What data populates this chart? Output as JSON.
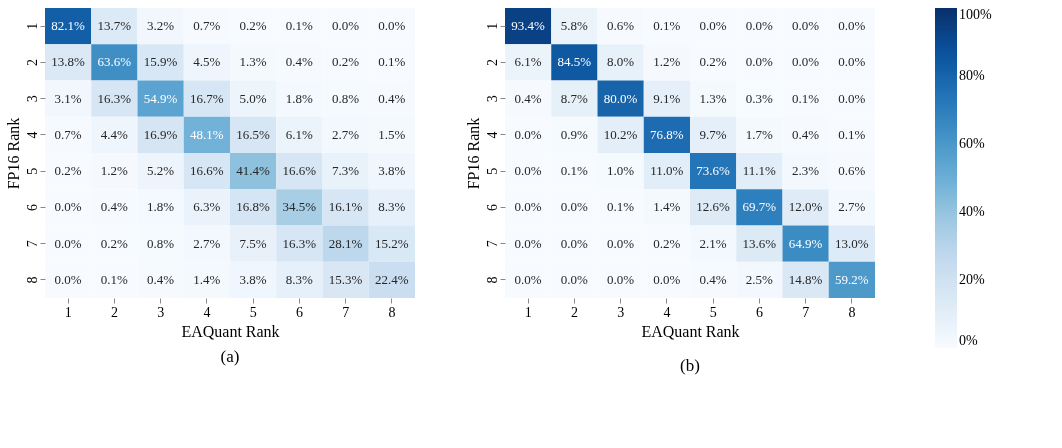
{
  "chart_data": [
    {
      "type": "heatmap",
      "title": "(a)",
      "xlabel": "EAQuant Rank",
      "ylabel": "FP16 Rank",
      "categories": [
        "1",
        "2",
        "3",
        "4",
        "5",
        "6",
        "7",
        "8"
      ],
      "y_categories": [
        "1",
        "2",
        "3",
        "4",
        "5",
        "6",
        "7",
        "8"
      ],
      "cells": [
        [
          82.1,
          13.7,
          3.2,
          0.7,
          0.2,
          0.1,
          0.0,
          0.0
        ],
        [
          13.8,
          63.6,
          15.9,
          4.5,
          1.3,
          0.4,
          0.2,
          0.1
        ],
        [
          3.1,
          16.3,
          54.9,
          16.7,
          5.0,
          1.8,
          0.8,
          0.4
        ],
        [
          0.7,
          4.4,
          16.9,
          48.1,
          16.5,
          6.1,
          2.7,
          1.5
        ],
        [
          0.2,
          1.2,
          5.2,
          16.6,
          41.4,
          16.6,
          7.3,
          3.8
        ],
        [
          0.0,
          0.4,
          1.8,
          6.3,
          16.8,
          34.5,
          16.1,
          8.3
        ],
        [
          0.0,
          0.2,
          0.8,
          2.7,
          7.5,
          16.3,
          28.1,
          15.2
        ],
        [
          0.0,
          0.1,
          0.4,
          1.4,
          3.8,
          8.3,
          15.3,
          22.4
        ]
      ],
      "cell_labels": [
        [
          "82.1%",
          "13.7%",
          "3.2%",
          "0.7%",
          "0.2%",
          "0.1%",
          "0.0%",
          "0.0%"
        ],
        [
          "13.8%",
          "63.6%",
          "15.9%",
          "4.5%",
          "1.3%",
          "0.4%",
          "0.2%",
          "0.1%"
        ],
        [
          "3.1%",
          "16.3%",
          "54.9%",
          "16.7%",
          "5.0%",
          "1.8%",
          "0.8%",
          "0.4%"
        ],
        [
          "0.7%",
          "4.4%",
          "16.9%",
          "48.1%",
          "16.5%",
          "6.1%",
          "2.7%",
          "1.5%"
        ],
        [
          "0.2%",
          "1.2%",
          "5.2%",
          "16.6%",
          "41.4%",
          "16.6%",
          "7.3%",
          "3.8%"
        ],
        [
          "0.0%",
          "0.4%",
          "1.8%",
          "6.3%",
          "16.8%",
          "34.5%",
          "16.1%",
          "8.3%"
        ],
        [
          "0.0%",
          "0.2%",
          "0.8%",
          "2.7%",
          "7.5%",
          "16.3%",
          "28.1%",
          "15.2%"
        ],
        [
          "0.0%",
          "0.1%",
          "0.4%",
          "1.4%",
          "3.8%",
          "8.3%",
          "15.3%",
          "22.4%"
        ]
      ]
    },
    {
      "type": "heatmap",
      "title": "(b)",
      "xlabel": "EAQuant Rank",
      "ylabel": "FP16 Rank",
      "categories": [
        "1",
        "2",
        "3",
        "4",
        "5",
        "6",
        "7",
        "8"
      ],
      "y_categories": [
        "1",
        "2",
        "3",
        "4",
        "5",
        "6",
        "7",
        "8"
      ],
      "cells": [
        [
          93.4,
          5.8,
          0.6,
          0.1,
          0.0,
          0.0,
          0.0,
          0.0
        ],
        [
          6.1,
          84.5,
          8.0,
          1.2,
          0.2,
          0.0,
          0.0,
          0.0
        ],
        [
          0.4,
          8.7,
          80.0,
          9.1,
          1.3,
          0.3,
          0.1,
          0.0
        ],
        [
          0.0,
          0.9,
          10.2,
          76.8,
          9.7,
          1.7,
          0.4,
          0.1
        ],
        [
          0.0,
          0.1,
          1.0,
          11.0,
          73.6,
          11.1,
          2.3,
          0.6
        ],
        [
          0.0,
          0.0,
          0.1,
          1.4,
          12.6,
          69.7,
          12.0,
          2.7
        ],
        [
          0.0,
          0.0,
          0.0,
          0.2,
          2.1,
          13.6,
          64.9,
          13.0
        ],
        [
          0.0,
          0.0,
          0.0,
          0.0,
          0.4,
          2.5,
          14.8,
          59.2
        ]
      ],
      "cell_labels": [
        [
          "93.4%",
          "5.8%",
          "0.6%",
          "0.1%",
          "0.0%",
          "0.0%",
          "0.0%",
          "0.0%"
        ],
        [
          "6.1%",
          "84.5%",
          "8.0%",
          "1.2%",
          "0.2%",
          "0.0%",
          "0.0%",
          "0.0%"
        ],
        [
          "0.4%",
          "8.7%",
          "80.0%",
          "9.1%",
          "1.3%",
          "0.3%",
          "0.1%",
          "0.0%"
        ],
        [
          "0.0%",
          "0.9%",
          "10.2%",
          "76.8%",
          "9.7%",
          "1.7%",
          "0.4%",
          "0.1%"
        ],
        [
          "0.0%",
          "0.1%",
          "1.0%",
          "11.0%",
          "73.6%",
          "11.1%",
          "2.3%",
          "0.6%"
        ],
        [
          "0.0%",
          "0.0%",
          "0.1%",
          "1.4%",
          "12.6%",
          "69.7%",
          "12.0%",
          "2.7%"
        ],
        [
          "0.0%",
          "0.0%",
          "0.0%",
          "0.2%",
          "2.1%",
          "13.6%",
          "64.9%",
          "13.0%"
        ],
        [
          "0.0%",
          "0.0%",
          "0.0%",
          "0.0%",
          "0.4%",
          "2.5%",
          "14.8%",
          "59.2%"
        ]
      ],
      "clim": [
        0,
        100
      ],
      "cticks": [
        {
          "value": 0,
          "label": "0%"
        },
        {
          "value": 20,
          "label": "20%"
        },
        {
          "value": 40,
          "label": "40%"
        },
        {
          "value": 60,
          "label": "60%"
        },
        {
          "value": 80,
          "label": "80%"
        },
        {
          "value": 100,
          "label": "100%"
        }
      ]
    }
  ]
}
